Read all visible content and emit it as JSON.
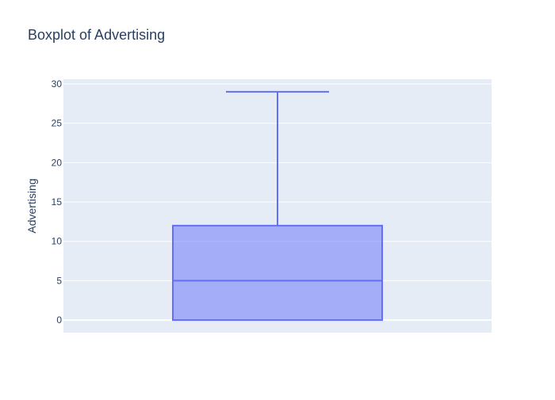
{
  "chart_data": {
    "type": "box",
    "title": "Boxplot of Advertising",
    "xlabel": "",
    "ylabel": "Advertising",
    "ylim": [
      -1.6,
      30.6
    ],
    "y_ticks": [
      0,
      5,
      10,
      15,
      20,
      25,
      30
    ],
    "grid": true,
    "series": [
      {
        "min": 0,
        "q1": 0,
        "median": 5,
        "q3": 12,
        "max": 29
      }
    ]
  },
  "colors": {
    "plot_background": "#E5ECF6",
    "grid": "#FFFFFF",
    "box_fill": "rgba(99,110,250,0.5)",
    "box_line": "#636EFA",
    "title_text": "#2A3F5F",
    "tick_text": "#2A3F5F"
  }
}
